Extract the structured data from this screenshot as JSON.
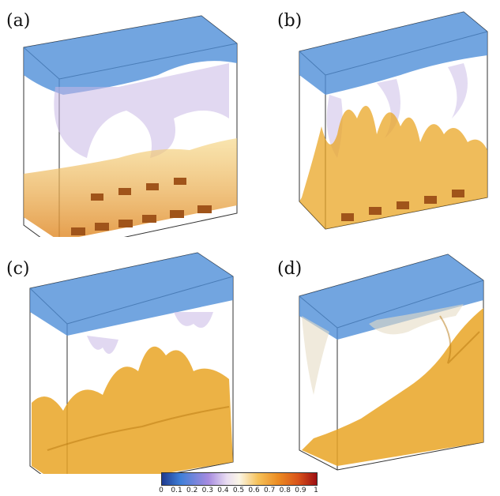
{
  "panels": [
    {
      "id": "a",
      "label": "(a)"
    },
    {
      "id": "b",
      "label": "(b)"
    },
    {
      "id": "c",
      "label": "(c)"
    },
    {
      "id": "d",
      "label": "(d)"
    }
  ],
  "colorbar": {
    "ticks": [
      "0",
      "0.1",
      "0.2",
      "0.3",
      "0.4",
      "0.5",
      "0.6",
      "0.7",
      "0.8",
      "0.9",
      "1"
    ],
    "colors": {
      "low": "#1e3a8f",
      "mid": "#fbf6e6",
      "high": "#9d0e12"
    }
  },
  "colors": {
    "cold_plume": "#4f8fd8",
    "light_plume": "#c8b8e6",
    "warm_plume": "#e9a524",
    "hot_block": "#a0541a"
  }
}
